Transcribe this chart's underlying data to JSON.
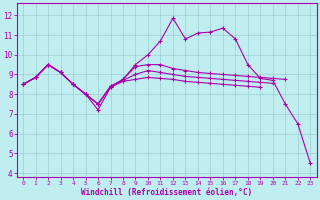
{
  "xlabel": "Windchill (Refroidissement éolien,°C)",
  "background_color": "#c0eef0",
  "line_color": "#aa00aa",
  "xlim": [
    -0.5,
    23.5
  ],
  "ylim": [
    3.8,
    12.6
  ],
  "yticks": [
    4,
    5,
    6,
    7,
    8,
    9,
    10,
    11,
    12
  ],
  "xticks": [
    0,
    1,
    2,
    3,
    4,
    5,
    6,
    7,
    8,
    9,
    10,
    11,
    12,
    13,
    14,
    15,
    16,
    17,
    18,
    19,
    20,
    21,
    22,
    23
  ],
  "lines": [
    {
      "x": [
        0,
        1,
        2,
        3,
        4,
        5,
        6,
        7,
        8,
        9,
        10,
        11,
        12,
        13,
        14,
        15,
        16,
        17,
        18,
        19,
        20,
        21,
        22,
        23
      ],
      "y": [
        8.5,
        8.85,
        9.5,
        9.1,
        8.5,
        8.0,
        7.2,
        8.35,
        8.75,
        9.5,
        10.0,
        10.7,
        11.85,
        10.8,
        11.1,
        11.15,
        11.35,
        10.8,
        9.5,
        8.8,
        8.7,
        7.5,
        6.5,
        4.5
      ]
    },
    {
      "x": [
        0,
        1,
        2,
        3,
        4,
        5,
        6,
        7,
        8,
        9,
        10,
        11,
        12,
        13,
        14,
        15,
        16,
        17,
        18,
        19,
        20,
        21
      ],
      "y": [
        8.5,
        8.85,
        9.5,
        9.1,
        8.5,
        8.0,
        7.5,
        8.4,
        8.75,
        9.4,
        9.5,
        9.5,
        9.3,
        9.2,
        9.1,
        9.05,
        9.0,
        8.95,
        8.9,
        8.85,
        8.8,
        8.75
      ]
    },
    {
      "x": [
        0,
        1,
        2,
        3,
        4,
        5,
        6,
        7,
        8,
        9,
        10,
        11,
        12,
        13,
        14,
        15,
        16,
        17,
        18,
        19,
        20
      ],
      "y": [
        8.5,
        8.85,
        9.5,
        9.1,
        8.5,
        8.0,
        7.5,
        8.4,
        8.7,
        9.0,
        9.2,
        9.1,
        9.0,
        8.9,
        8.85,
        8.8,
        8.75,
        8.7,
        8.65,
        8.6,
        8.55
      ]
    },
    {
      "x": [
        0,
        1,
        2,
        3,
        4,
        5,
        6,
        7,
        8,
        9,
        10,
        11,
        12,
        13,
        14,
        15,
        16,
        17,
        18,
        19
      ],
      "y": [
        8.5,
        8.85,
        9.5,
        9.1,
        8.5,
        8.0,
        7.5,
        8.35,
        8.65,
        8.75,
        8.85,
        8.8,
        8.75,
        8.65,
        8.6,
        8.55,
        8.5,
        8.45,
        8.4,
        8.35
      ]
    }
  ]
}
